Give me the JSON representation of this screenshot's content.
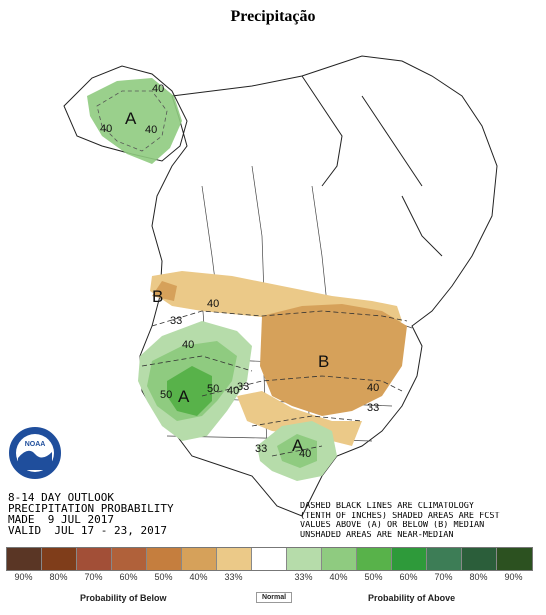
{
  "title": "Precipitação",
  "info": {
    "line1": "8-14 DAY OUTLOOK",
    "line2": "PRECIPITATION PROBABILITY",
    "line3": "MADE  9 JUL 2017",
    "line4": "VALID  JUL 17 - 23, 2017"
  },
  "note": {
    "line1": "DASHED BLACK LINES ARE CLIMATOLOGY",
    "line2": "(TENTH OF INCHES) SHADED AREAS ARE FCST",
    "line3": "VALUES ABOVE (A) OR BELOW (B) MEDIAN",
    "line4": "UNSHADED AREAS ARE NEAR-MEDIAN"
  },
  "logo_text": "NOAA",
  "map_labels": {
    "alaska_a": "A",
    "west_a": "A",
    "gulf_a": "A",
    "north_b": "B",
    "central_b": "B",
    "ak40a": "40",
    "ak40b": "40",
    "ak40c": "40",
    "n40": "40",
    "n33": "33",
    "w40": "40",
    "w50a": "50",
    "w50b": "50",
    "w40b": "40",
    "c40": "40",
    "c33": "33",
    "c40b": "40",
    "g33": "33",
    "g40": "40",
    "e33": "33"
  },
  "legend": {
    "colors": [
      "#5a3625",
      "#7f3d1a",
      "#a24f37",
      "#b0613a",
      "#c57e3e",
      "#d6a15a",
      "#ebc988",
      "#ffffff",
      "#b6dcaa",
      "#8fcb80",
      "#58b24a",
      "#2e9a3a",
      "#3d7d56",
      "#2b5e3a",
      "#2c5120"
    ],
    "labels": [
      "90%",
      "80%",
      "70%",
      "60%",
      "50%",
      "40%",
      "33%",
      "",
      "33%",
      "40%",
      "50%",
      "60%",
      "70%",
      "80%",
      "90%"
    ],
    "below": "Probability of Below",
    "normal": "Normal",
    "above": "Probability of Above"
  }
}
